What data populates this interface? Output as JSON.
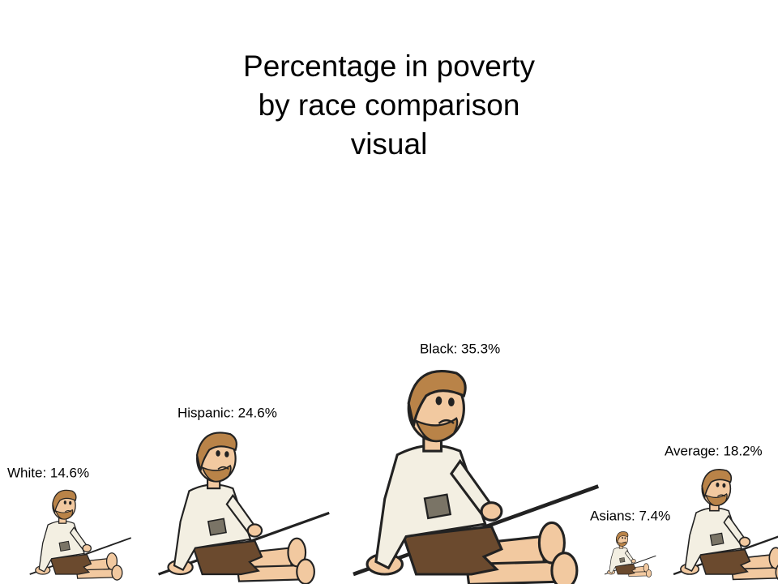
{
  "title": "Percentage in poverty\nby race comparison\nvisual",
  "chart_data": {
    "type": "bar",
    "categories": [
      "White",
      "Hispanic",
      "Black",
      "Asians",
      "Average"
    ],
    "values": [
      14.6,
      24.6,
      35.3,
      7.4,
      18.2
    ],
    "labels": [
      "White: 14.6%",
      "Hispanic: 24.6%",
      "Black: 35.3%",
      "Asians: 7.4%",
      "Average: 18.2%"
    ],
    "unit": "%",
    "mark": "cartoon-beggar-figure",
    "colors": {
      "skin": "#f2c9a0",
      "hair": "#b98348",
      "shirt": "#f3efe2",
      "pants": "#6b4a2e",
      "patch": "#7a7466",
      "outline": "#222222"
    }
  }
}
